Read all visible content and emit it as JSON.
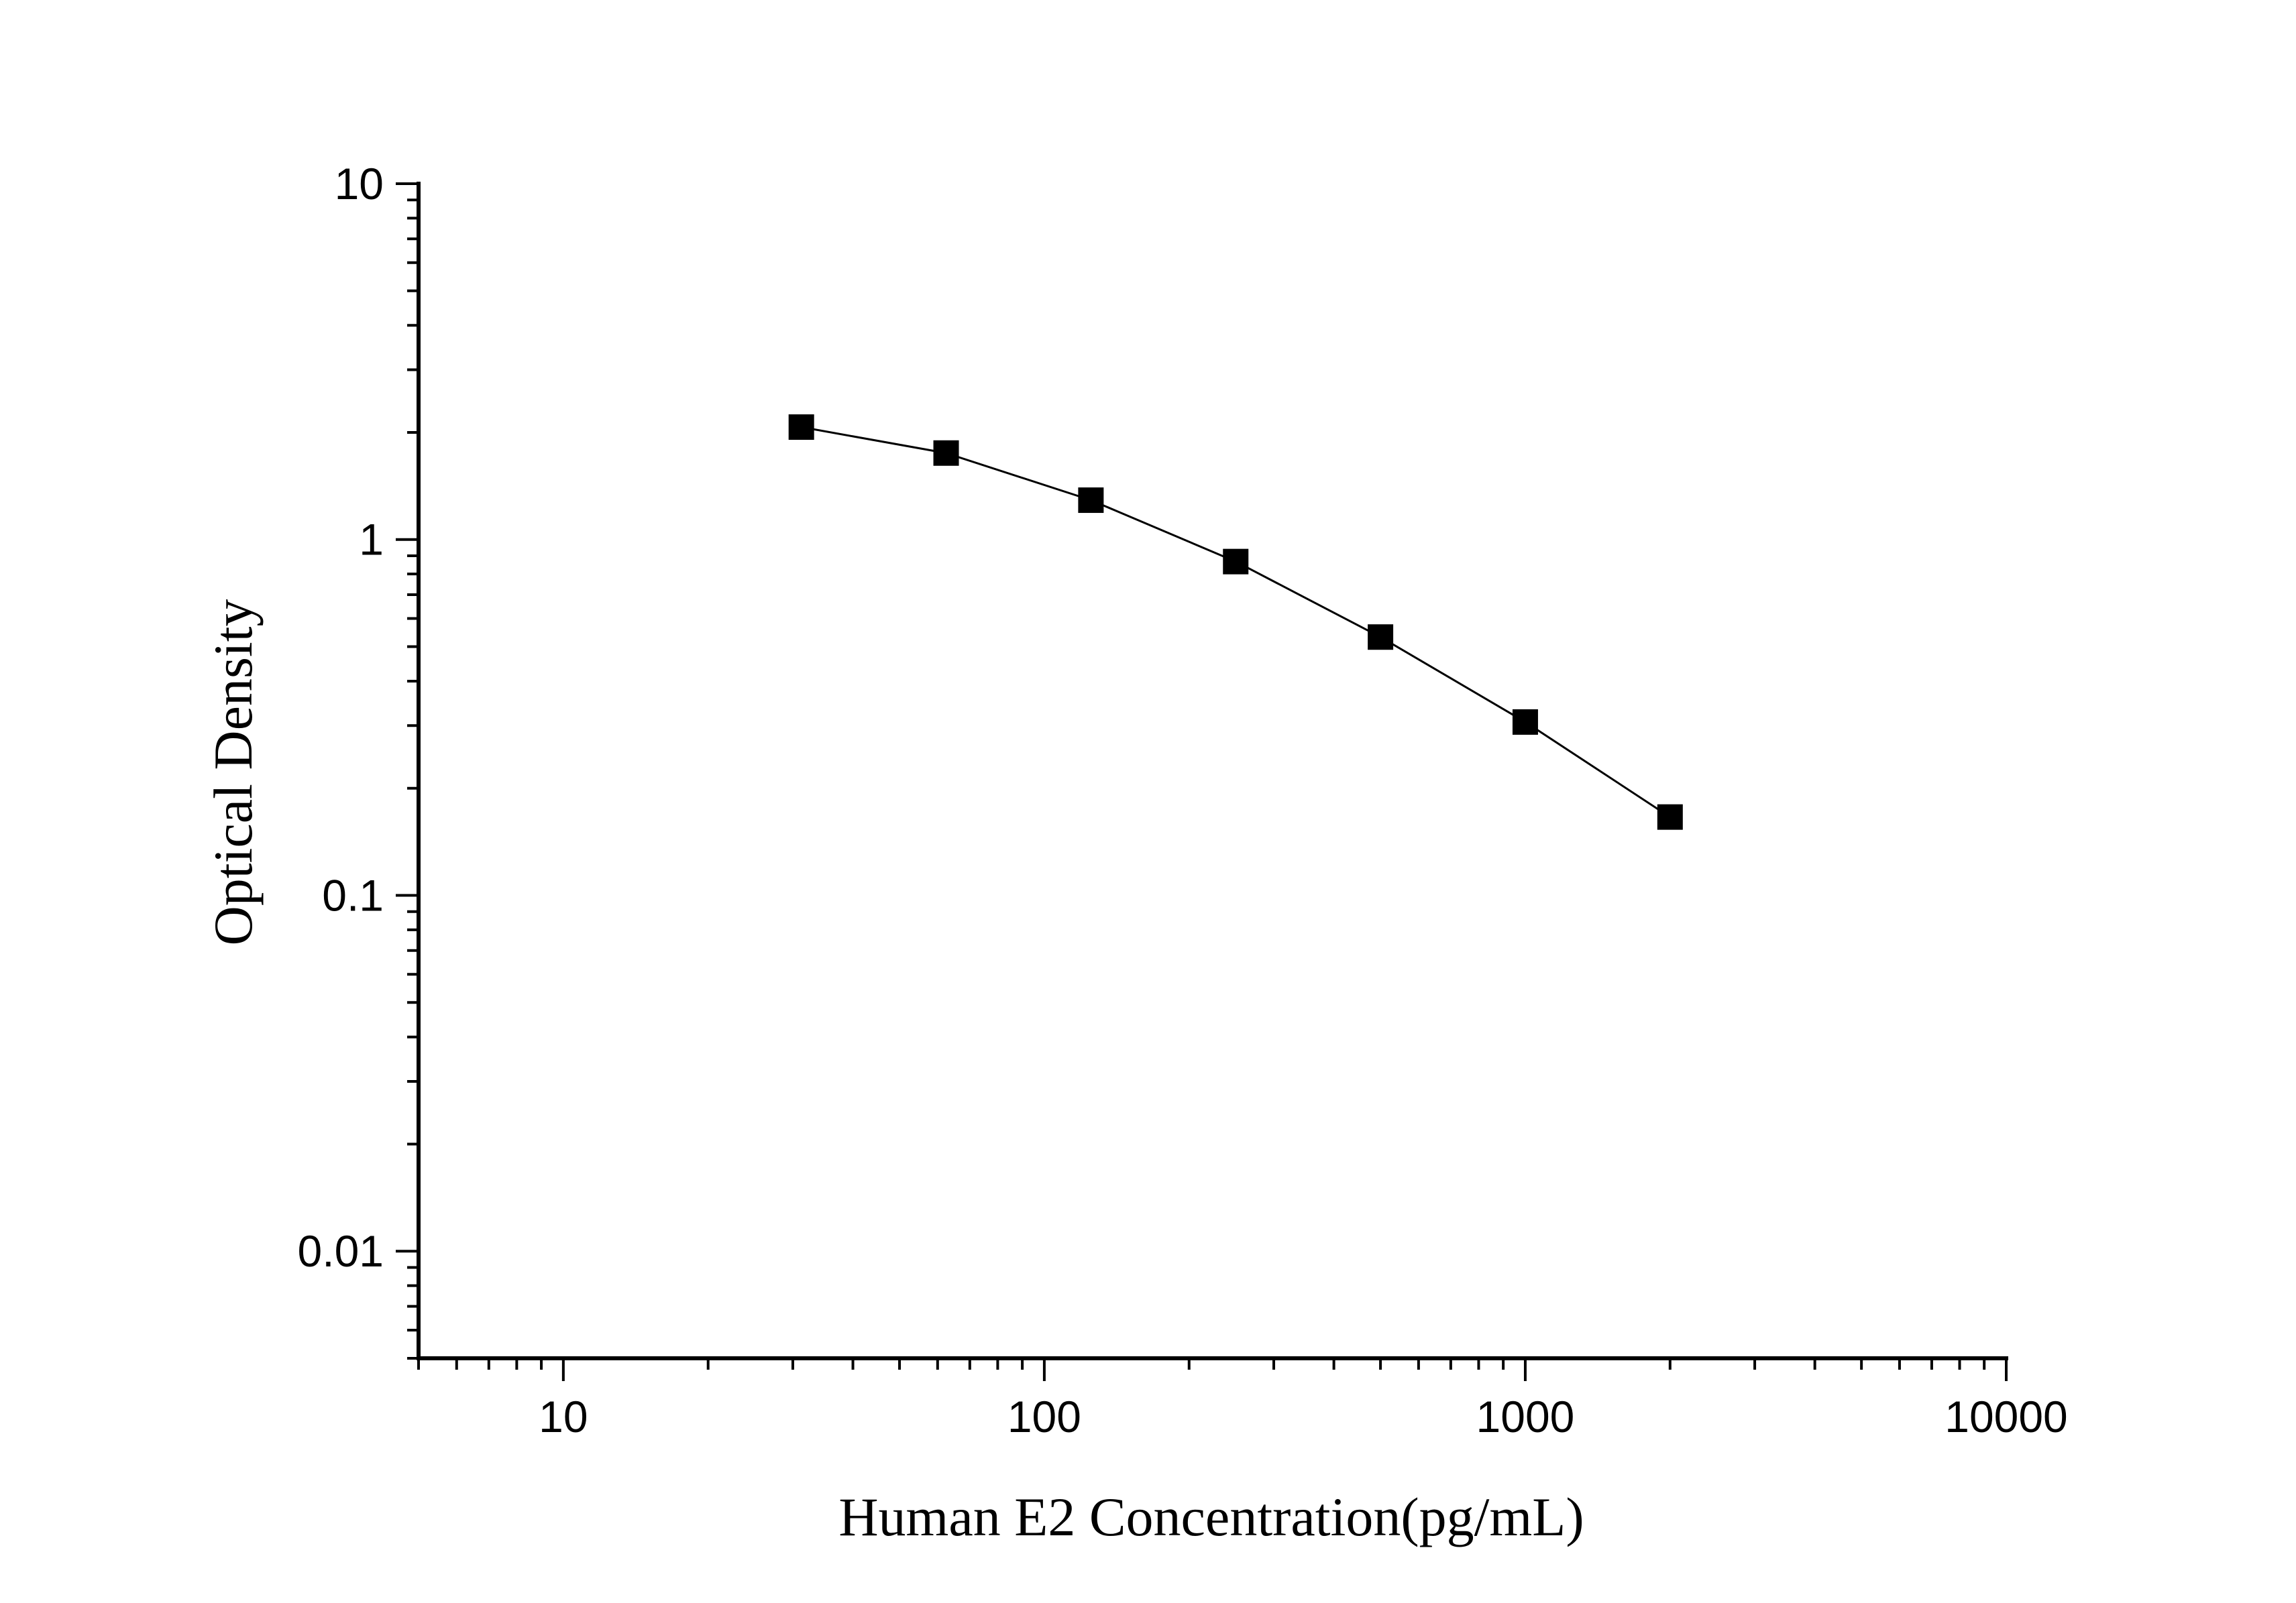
{
  "chart_data": {
    "type": "line",
    "title": "",
    "xlabel": "Human E2 Concentration(pg/mL)",
    "ylabel": "Optical Density",
    "xscale": "log",
    "yscale": "log",
    "xlim": [
      5,
      10000
    ],
    "ylim": [
      0.005,
      10
    ],
    "xticks": [
      10,
      100,
      1000,
      10000
    ],
    "xtick_labels": [
      "10",
      "100",
      "1000",
      "10000"
    ],
    "yticks": [
      0.01,
      0.1,
      1,
      10
    ],
    "ytick_labels": [
      "0.01",
      "0.1",
      "1",
      "10"
    ],
    "grid": false,
    "legend": "none",
    "marker": "square",
    "color": "#000000",
    "series": [
      {
        "x": [
          31.25,
          62.5,
          125,
          250,
          500,
          1000,
          2000
        ],
        "y": [
          2.07,
          1.75,
          1.29,
          0.867,
          0.532,
          0.307,
          0.166
        ]
      }
    ]
  }
}
